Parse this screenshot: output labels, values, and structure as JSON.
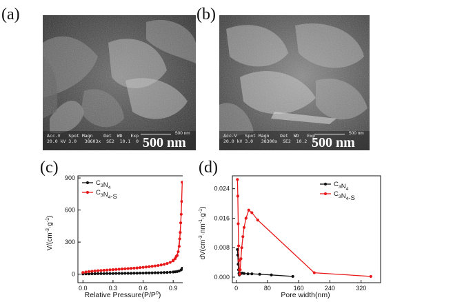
{
  "panels": {
    "a": {
      "letter": "(a)",
      "info_line1": "Acc.V   Spot Magn    Det  WD   Exp",
      "info_line2": "20.0 kV 3.0   38603x  SE2  10.1  0",
      "scale_small": "500 nm",
      "scale_big": "500 nm"
    },
    "b": {
      "letter": "(b)",
      "info_line1": "Acc.V   Spot Magn    Det  WD   Exp",
      "info_line2": "20.0 kV 3.0   38300x  SE2  10.2  0",
      "scale_small": "500 nm",
      "scale_big": "500 nm"
    },
    "c": {
      "letter": "(c)"
    },
    "d": {
      "letter": "(d)"
    }
  },
  "colors": {
    "c3n4": "#111111",
    "c3n4s": "#e8191b"
  },
  "chart_data": [
    {
      "type": "line",
      "panel": "c",
      "xlabel": "Relative Pressure(P/P0)",
      "ylabel": "V/(cm-3·g-1)",
      "xlim": [
        -0.05,
        1.05
      ],
      "ylim": [
        -80,
        920
      ],
      "xticks": [
        0.0,
        0.3,
        0.6,
        0.9
      ],
      "xtick_labels": [
        "0.0",
        "0.3",
        "0.6",
        "0.9"
      ],
      "yticks": [
        0,
        300,
        600,
        900
      ],
      "ytick_labels": [
        "0",
        "300",
        "600",
        "900"
      ],
      "legend": [
        "C3N4",
        "C3N4-S"
      ],
      "legend_position": "top-left",
      "series": [
        {
          "name": "C3N4",
          "x": [
            0.0,
            0.03,
            0.06,
            0.09,
            0.12,
            0.15,
            0.18,
            0.21,
            0.24,
            0.27,
            0.3,
            0.33,
            0.36,
            0.39,
            0.42,
            0.45,
            0.48,
            0.51,
            0.54,
            0.57,
            0.6,
            0.63,
            0.66,
            0.69,
            0.72,
            0.75,
            0.78,
            0.81,
            0.84,
            0.87,
            0.9,
            0.92,
            0.94,
            0.96,
            0.98,
            0.99
          ],
          "y": [
            2,
            3,
            3,
            4,
            4,
            5,
            5,
            5,
            6,
            6,
            6,
            7,
            7,
            7,
            8,
            8,
            8,
            9,
            9,
            10,
            10,
            11,
            11,
            12,
            13,
            13,
            14,
            15,
            16,
            18,
            20,
            22,
            25,
            30,
            40,
            55
          ]
        },
        {
          "name": "C3N4-S",
          "x": [
            0.0,
            0.03,
            0.06,
            0.09,
            0.12,
            0.15,
            0.18,
            0.21,
            0.24,
            0.27,
            0.3,
            0.33,
            0.36,
            0.39,
            0.42,
            0.45,
            0.48,
            0.51,
            0.54,
            0.57,
            0.6,
            0.63,
            0.66,
            0.69,
            0.72,
            0.75,
            0.78,
            0.81,
            0.84,
            0.87,
            0.9,
            0.92,
            0.94,
            0.96,
            0.97,
            0.98,
            0.99,
            0.985,
            0.975,
            0.965,
            0.95,
            0.93,
            0.9
          ],
          "y": [
            15,
            20,
            24,
            27,
            30,
            32,
            34,
            36,
            38,
            40,
            42,
            44,
            46,
            48,
            50,
            52,
            54,
            56,
            58,
            61,
            64,
            67,
            70,
            73,
            77,
            81,
            86,
            92,
            100,
            110,
            125,
            145,
            175,
            260,
            390,
            560,
            860,
            680,
            480,
            330,
            210,
            165,
            130
          ]
        }
      ]
    },
    {
      "type": "line",
      "panel": "d",
      "xlabel": "Pore width(nm)",
      "ylabel": "dV(cm-3·nm-1·g-1)",
      "xlim": [
        -10,
        370
      ],
      "ylim": [
        -0.0015,
        0.0275
      ],
      "xticks": [
        0,
        80,
        160,
        240,
        320
      ],
      "xtick_labels": [
        "0",
        "80",
        "160",
        "240",
        "320"
      ],
      "yticks": [
        0.0,
        0.008,
        0.016,
        0.024
      ],
      "ytick_labels": [
        "0.000",
        "0.008",
        "0.016",
        "0.024"
      ],
      "legend": [
        "C3N4",
        "C3N4-S"
      ],
      "legend_position": "top-right",
      "series": [
        {
          "name": "C3N4",
          "x": [
            3,
            4,
            5,
            6,
            7,
            8,
            9,
            10,
            12,
            15,
            20,
            30,
            40,
            60,
            90,
            145
          ],
          "y": [
            0.0075,
            0.006,
            0.0035,
            0.002,
            0.001,
            0.0006,
            0.0008,
            0.0009,
            0.001,
            0.0011,
            0.001,
            0.0009,
            0.0009,
            0.0008,
            0.0006,
            0.0002
          ]
        },
        {
          "name": "C3N4-S",
          "x": [
            3,
            4,
            5,
            6,
            7,
            8,
            9,
            10,
            12,
            14,
            17,
            20,
            25,
            32,
            40,
            55,
            200,
            345
          ],
          "y": [
            0.0265,
            0.022,
            0.0145,
            0.0085,
            0.0045,
            0.002,
            0.0008,
            0.002,
            0.005,
            0.008,
            0.011,
            0.0135,
            0.016,
            0.0182,
            0.0175,
            0.0155,
            0.0012,
            0.0002
          ]
        }
      ]
    }
  ]
}
